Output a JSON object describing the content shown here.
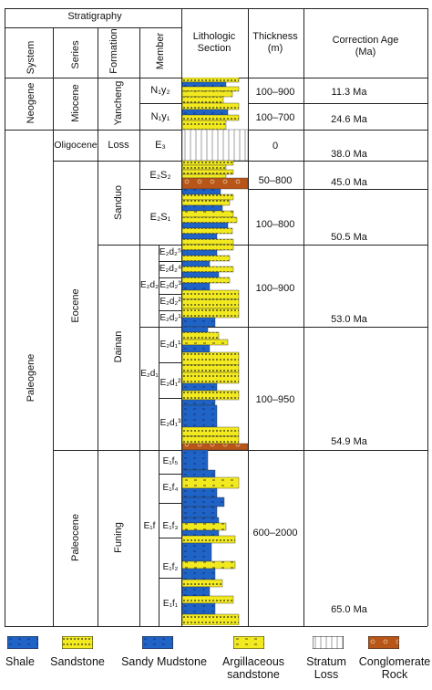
{
  "header": {
    "stratigraphy": "Stratigraphy",
    "system": "System",
    "series": "Series",
    "formation": "Formation",
    "member": "Member",
    "lithologic_line1": "Lithologic",
    "lithologic_line2": "Section",
    "thickness_line1": "Thickness",
    "thickness_line2": "(m)",
    "age_line1": "Correction Age",
    "age_line2": "(Ma)"
  },
  "systems": {
    "neogene": "Neogene",
    "paleogene": "Paleogene"
  },
  "series": {
    "miocene": "Miocene",
    "oligocene": "Oligocene",
    "eocene": "Eocene",
    "paleocene": "Paleocene"
  },
  "formations": {
    "yancheng": "Yancheng",
    "loss": "Loss",
    "sanduo": "Sanduo",
    "dainan": "Dainan",
    "funing": "Funing"
  },
  "members": {
    "n1y2": "N₁y₂",
    "n1y1": "N₁y₁",
    "e3": "E₃",
    "e2s2": "E₂S₂",
    "e2s1": "E₂S₁",
    "e2d2": "E₂d₂",
    "e2d2_sub": [
      "E₂d₂⁵",
      "E₂d₂⁴",
      "E₂d₂³",
      "E₂d₂²",
      "E₂d₂¹"
    ],
    "e2d1": "E₂d₁",
    "e2d1_sub": [
      "E₂d₁¹",
      "E₂d₁²",
      "E₂d₁³"
    ],
    "e1f": "E₁f",
    "e1f_sub": [
      "E₁f₅",
      "E₁f₄",
      "E₁f₃",
      "E₁f₂",
      "E₁f₁"
    ]
  },
  "thickness": [
    "100–900",
    "100–700",
    "0",
    "50–800",
    "100–800",
    "100–900",
    "100–950",
    "600–2000"
  ],
  "ages": [
    "11.3 Ma",
    "24.6 Ma",
    "38.0 Ma",
    "45.0 Ma",
    "50.5 Ma",
    "53.0 Ma",
    "54.9 Ma",
    "65.0 Ma"
  ],
  "legend": [
    {
      "label": "Shale",
      "color": "#1f63c6",
      "pattern": "dash"
    },
    {
      "label": "Sandstone",
      "color": "#f2ea1f",
      "pattern": "dots"
    },
    {
      "label": "Sandy Mudstone",
      "color": "#1f63c6",
      "pattern": "dash"
    },
    {
      "label": "Argillaceous sandstone",
      "color": "#f2ea1f",
      "pattern": "dash"
    },
    {
      "label": "Stratum Loss",
      "color": "#ffffff",
      "pattern": "vlines"
    },
    {
      "label": "Conglomerate Rock",
      "color": "#b8561a",
      "pattern": "circles"
    }
  ],
  "colors": {
    "shale": "#1f63c6",
    "sandstone": "#f2ea1f",
    "conglomerate": "#b8561a"
  }
}
